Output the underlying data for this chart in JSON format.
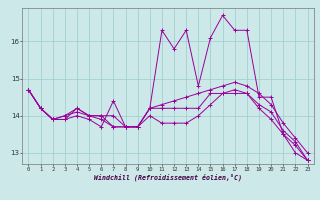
{
  "title": "",
  "xlabel": "Windchill (Refroidissement éolien,°C)",
  "ylabel": "",
  "bg_color": "#cce8e8",
  "grid_color": "#99cccc",
  "line_color": "#990099",
  "xlim": [
    -0.5,
    23.5
  ],
  "ylim": [
    12.7,
    16.9
  ],
  "yticks": [
    13,
    14,
    15,
    16
  ],
  "xticks": [
    0,
    1,
    2,
    3,
    4,
    5,
    6,
    7,
    8,
    9,
    10,
    11,
    12,
    13,
    14,
    15,
    16,
    17,
    18,
    19,
    20,
    21,
    22,
    23
  ],
  "series": [
    [
      14.7,
      14.2,
      13.9,
      13.9,
      14.0,
      13.9,
      13.7,
      14.4,
      13.7,
      13.7,
      14.2,
      16.3,
      15.8,
      16.3,
      14.8,
      16.1,
      16.7,
      16.3,
      16.3,
      14.5,
      14.5,
      13.5,
      13.0,
      12.8
    ],
    [
      14.7,
      14.2,
      13.9,
      14.0,
      14.2,
      14.0,
      14.0,
      14.0,
      13.7,
      13.7,
      14.2,
      14.3,
      14.4,
      14.5,
      14.6,
      14.7,
      14.8,
      14.9,
      14.8,
      14.6,
      14.3,
      13.8,
      13.4,
      13.0
    ],
    [
      14.7,
      14.2,
      13.9,
      13.9,
      14.2,
      14.0,
      14.0,
      13.7,
      13.7,
      13.7,
      14.2,
      14.2,
      14.2,
      14.2,
      14.2,
      14.6,
      14.6,
      14.6,
      14.6,
      14.3,
      14.1,
      13.6,
      13.3,
      12.8
    ],
    [
      14.7,
      14.2,
      13.9,
      14.0,
      14.1,
      14.0,
      13.9,
      13.7,
      13.7,
      13.7,
      14.0,
      13.8,
      13.8,
      13.8,
      14.0,
      14.3,
      14.6,
      14.7,
      14.6,
      14.2,
      13.9,
      13.5,
      13.2,
      12.8
    ]
  ]
}
